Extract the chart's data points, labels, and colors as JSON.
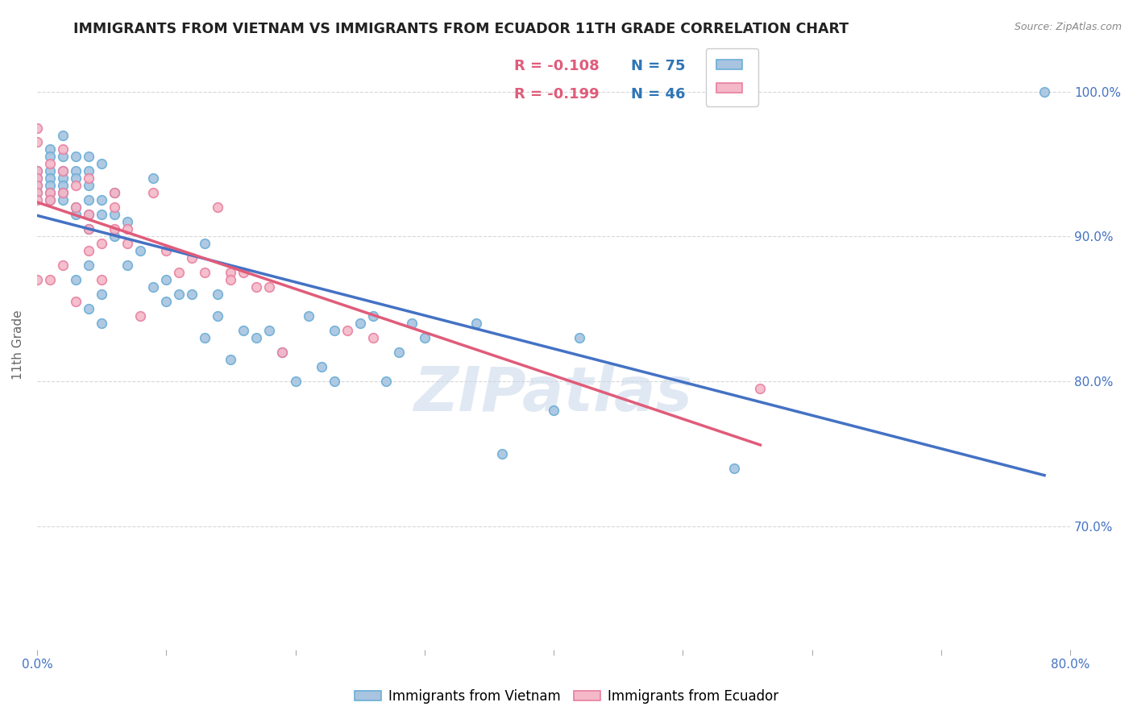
{
  "title": "IMMIGRANTS FROM VIETNAM VS IMMIGRANTS FROM ECUADOR 11TH GRADE CORRELATION CHART",
  "source": "Source: ZipAtlas.com",
  "ylabel": "11th Grade",
  "xlim": [
    0.0,
    0.8
  ],
  "ylim": [
    0.615,
    1.035
  ],
  "xtick_vals": [
    0.0,
    0.1,
    0.2,
    0.3,
    0.4,
    0.5,
    0.6,
    0.7,
    0.8
  ],
  "xtick_labels": [
    "0.0%",
    "",
    "",
    "",
    "",
    "",
    "",
    "",
    "80.0%"
  ],
  "ytick_vals": [
    0.7,
    0.8,
    0.9,
    1.0
  ],
  "ytick_labels_right": [
    "70.0%",
    "80.0%",
    "90.0%",
    "100.0%"
  ],
  "vietnam_color": "#a8c4e0",
  "vietnam_edge_color": "#6aaed6",
  "ecuador_color": "#f4b8c8",
  "ecuador_edge_color": "#e87fa0",
  "trend_vietnam_color": "#4472c4",
  "trend_ecuador_color": "#e05c7a",
  "legend_r_vietnam": "-0.108",
  "legend_n_vietnam": "75",
  "legend_r_ecuador": "-0.199",
  "legend_n_ecuador": "46",
  "legend_color_r": "#e05c7a",
  "legend_color_n": "#2e75b6",
  "watermark": "ZIPatlas",
  "vietnam_x": [
    0.0,
    0.0,
    0.0,
    0.0,
    0.01,
    0.01,
    0.01,
    0.01,
    0.01,
    0.01,
    0.01,
    0.02,
    0.02,
    0.02,
    0.02,
    0.02,
    0.02,
    0.02,
    0.03,
    0.03,
    0.03,
    0.03,
    0.03,
    0.03,
    0.04,
    0.04,
    0.04,
    0.04,
    0.04,
    0.04,
    0.04,
    0.04,
    0.05,
    0.05,
    0.05,
    0.05,
    0.05,
    0.06,
    0.06,
    0.06,
    0.07,
    0.07,
    0.08,
    0.09,
    0.09,
    0.1,
    0.1,
    0.11,
    0.12,
    0.13,
    0.13,
    0.14,
    0.14,
    0.15,
    0.16,
    0.17,
    0.18,
    0.19,
    0.2,
    0.21,
    0.22,
    0.23,
    0.23,
    0.25,
    0.26,
    0.27,
    0.28,
    0.29,
    0.3,
    0.34,
    0.36,
    0.4,
    0.42,
    0.54,
    0.78
  ],
  "vietnam_y": [
    0.945,
    0.94,
    0.935,
    0.93,
    0.96,
    0.955,
    0.945,
    0.94,
    0.935,
    0.93,
    0.925,
    0.97,
    0.955,
    0.945,
    0.94,
    0.935,
    0.93,
    0.925,
    0.955,
    0.945,
    0.94,
    0.92,
    0.915,
    0.87,
    0.955,
    0.945,
    0.935,
    0.925,
    0.915,
    0.905,
    0.88,
    0.85,
    0.95,
    0.925,
    0.915,
    0.86,
    0.84,
    0.93,
    0.915,
    0.9,
    0.91,
    0.88,
    0.89,
    0.94,
    0.865,
    0.87,
    0.855,
    0.86,
    0.86,
    0.895,
    0.83,
    0.845,
    0.86,
    0.815,
    0.835,
    0.83,
    0.835,
    0.82,
    0.8,
    0.845,
    0.81,
    0.835,
    0.8,
    0.84,
    0.845,
    0.8,
    0.82,
    0.84,
    0.83,
    0.84,
    0.75,
    0.78,
    0.83,
    0.74,
    1.0
  ],
  "ecuador_x": [
    0.0,
    0.0,
    0.0,
    0.0,
    0.0,
    0.0,
    0.0,
    0.0,
    0.01,
    0.01,
    0.01,
    0.01,
    0.02,
    0.02,
    0.02,
    0.02,
    0.03,
    0.03,
    0.03,
    0.04,
    0.04,
    0.04,
    0.04,
    0.05,
    0.05,
    0.06,
    0.06,
    0.06,
    0.07,
    0.07,
    0.08,
    0.09,
    0.1,
    0.11,
    0.12,
    0.13,
    0.14,
    0.15,
    0.15,
    0.16,
    0.17,
    0.18,
    0.19,
    0.24,
    0.26,
    0.56
  ],
  "ecuador_y": [
    0.975,
    0.965,
    0.945,
    0.94,
    0.935,
    0.93,
    0.925,
    0.87,
    0.95,
    0.93,
    0.925,
    0.87,
    0.96,
    0.945,
    0.93,
    0.88,
    0.935,
    0.92,
    0.855,
    0.94,
    0.915,
    0.905,
    0.89,
    0.895,
    0.87,
    0.93,
    0.92,
    0.905,
    0.905,
    0.895,
    0.845,
    0.93,
    0.89,
    0.875,
    0.885,
    0.875,
    0.92,
    0.875,
    0.87,
    0.875,
    0.865,
    0.865,
    0.82,
    0.835,
    0.83,
    0.795
  ],
  "background_color": "#ffffff",
  "grid_color": "#d8d8d8",
  "marker_size": 70,
  "title_fontsize": 12.5,
  "axis_tick_color": "#4472c4"
}
